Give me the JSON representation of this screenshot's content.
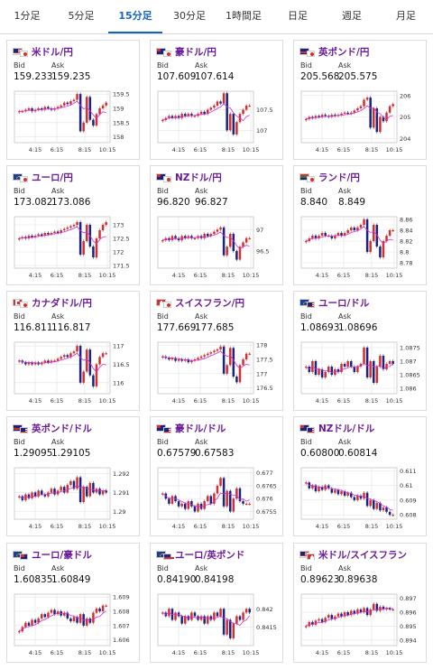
{
  "tabs": [
    {
      "label": "1分足",
      "active": false
    },
    {
      "label": "5分足",
      "active": false
    },
    {
      "label": "15分足",
      "active": true
    },
    {
      "label": "30分足",
      "active": false
    },
    {
      "label": "1時間足",
      "active": false
    },
    {
      "label": "日足",
      "active": false
    },
    {
      "label": "週足",
      "active": false
    },
    {
      "label": "月足",
      "active": false
    }
  ],
  "labels": {
    "bid": "Bid",
    "ask": "Ask"
  },
  "colors": {
    "up": "#d32f2f",
    "down": "#1a237e",
    "ma": "#d12fd1",
    "accent": "#1565c0",
    "name": "#6a1b9a"
  },
  "pairs": [
    {
      "name": "米ドル/円",
      "flags": [
        "us-flag-icon",
        "jp-flag-icon"
      ],
      "bid": "159.233",
      "ask": "159.235",
      "chart_data": {
        "type": "candlestick",
        "x_ticks": [
          "4:15",
          "6:15",
          "8:15",
          "10:15"
        ],
        "y_ticks": [
          "159.5",
          "159",
          "158.5",
          "158"
        ],
        "ylim": [
          157.8,
          159.6
        ],
        "close": [
          158.9,
          158.9,
          158.95,
          159.0,
          158.9,
          158.95,
          159.0,
          158.95,
          159.05,
          159.0,
          158.95,
          159.0,
          159.05,
          159.1,
          159.2,
          159.15,
          159.25,
          159.3,
          159.5,
          158.2,
          158.5,
          159.4,
          158.6,
          158.4,
          158.8,
          159.0,
          159.1,
          159.2
        ]
      }
    },
    {
      "name": "豪ドル/円",
      "flags": [
        "au-flag-icon",
        "jp-flag-icon"
      ],
      "bid": "107.609",
      "ask": "107.614",
      "chart_data": {
        "type": "candlestick",
        "x_ticks": [
          "4:15",
          "6:15",
          "8:15",
          "10:15"
        ],
        "y_ticks": [
          "107.5",
          "107"
        ],
        "ylim": [
          106.7,
          107.95
        ],
        "close": [
          107.25,
          107.3,
          107.35,
          107.3,
          107.35,
          107.3,
          107.4,
          107.35,
          107.4,
          107.35,
          107.35,
          107.4,
          107.45,
          107.4,
          107.5,
          107.55,
          107.6,
          107.7,
          107.65,
          107.9,
          107.0,
          107.4,
          106.9,
          107.2,
          107.4,
          107.5,
          107.6,
          107.6
        ]
      }
    },
    {
      "name": "英ポンド/円",
      "flags": [
        "gb-flag-icon",
        "jp-flag-icon"
      ],
      "bid": "205.568",
      "ask": "205.575",
      "chart_data": {
        "type": "candlestick",
        "x_ticks": [
          "4:15",
          "6:15",
          "8:15",
          "10:15"
        ],
        "y_ticks": [
          "206",
          "205",
          "204"
        ],
        "ylim": [
          203.8,
          206.2
        ],
        "close": [
          204.9,
          205.0,
          204.95,
          205.05,
          205.0,
          205.1,
          205.05,
          205.0,
          205.1,
          205.05,
          205.1,
          205.15,
          205.2,
          205.15,
          205.2,
          205.3,
          205.4,
          205.5,
          205.8,
          205.9,
          204.5,
          205.4,
          204.3,
          205.0,
          204.8,
          205.2,
          205.5,
          205.6
        ]
      }
    },
    {
      "name": "ユーロ/円",
      "flags": [
        "eu-flag-icon",
        "jp-flag-icon"
      ],
      "bid": "173.082",
      "ask": "173.086",
      "chart_data": {
        "type": "candlestick",
        "x_ticks": [
          "4:15",
          "6:15",
          "8:15",
          "10:15"
        ],
        "y_ticks": [
          "173",
          "172.5",
          "172",
          "171.5"
        ],
        "ylim": [
          171.4,
          173.3
        ],
        "close": [
          172.5,
          172.55,
          172.5,
          172.6,
          172.55,
          172.6,
          172.65,
          172.6,
          172.7,
          172.65,
          172.7,
          172.75,
          172.7,
          172.8,
          172.85,
          172.9,
          172.95,
          173.0,
          173.1,
          171.9,
          172.4,
          173.0,
          172.2,
          171.8,
          172.5,
          172.8,
          173.0,
          173.1
        ]
      }
    },
    {
      "name": "NZドル/円",
      "flags": [
        "nz-flag-icon",
        "jp-flag-icon"
      ],
      "bid": "96.820",
      "ask": "96.827",
      "chart_data": {
        "type": "candlestick",
        "x_ticks": [
          "4:15",
          "6:15",
          "8:15",
          "10:15"
        ],
        "y_ticks": [
          "97",
          "96.5"
        ],
        "ylim": [
          96.1,
          97.3
        ],
        "close": [
          96.75,
          96.8,
          96.75,
          96.85,
          96.8,
          96.75,
          96.85,
          96.8,
          96.85,
          96.8,
          96.8,
          96.85,
          96.8,
          96.9,
          96.85,
          96.9,
          96.95,
          97.0,
          97.05,
          96.4,
          96.6,
          96.9,
          96.5,
          96.3,
          96.6,
          96.7,
          96.8,
          96.8
        ]
      }
    },
    {
      "name": "ランド/円",
      "flags": [
        "za-flag-icon",
        "jp-flag-icon"
      ],
      "bid": "8.840",
      "ask": "8.849",
      "chart_data": {
        "type": "candlestick",
        "x_ticks": [
          "4:15",
          "6:15",
          "8:15",
          "10:15"
        ],
        "y_ticks": [
          "8.86",
          "8.84",
          "8.82",
          "8.8",
          "8.78"
        ],
        "ylim": [
          8.77,
          8.865
        ],
        "close": [
          8.82,
          8.825,
          8.83,
          8.825,
          8.83,
          8.835,
          8.83,
          8.83,
          8.825,
          8.83,
          8.835,
          8.83,
          8.835,
          8.84,
          8.845,
          8.84,
          8.845,
          8.85,
          8.86,
          8.8,
          8.82,
          8.85,
          8.81,
          8.79,
          8.82,
          8.83,
          8.84,
          8.84
        ]
      }
    },
    {
      "name": "カナダドル/円",
      "flags": [
        "ca-flag-icon",
        "jp-flag-icon"
      ],
      "bid": "116.811",
      "ask": "116.817",
      "chart_data": {
        "type": "candlestick",
        "x_ticks": [
          "4:15",
          "6:15",
          "8:15",
          "10:15"
        ],
        "y_ticks": [
          "117",
          "116.5",
          "116"
        ],
        "ylim": [
          115.7,
          117.1
        ],
        "close": [
          116.6,
          116.55,
          116.5,
          116.55,
          116.5,
          116.55,
          116.5,
          116.55,
          116.6,
          116.55,
          116.6,
          116.6,
          116.65,
          116.7,
          116.75,
          116.7,
          116.8,
          116.85,
          117.0,
          116.0,
          116.3,
          116.9,
          116.2,
          115.9,
          116.5,
          116.7,
          116.8,
          116.8
        ]
      }
    },
    {
      "name": "スイスフラン/円",
      "flags": [
        "ch-flag-icon",
        "jp-flag-icon"
      ],
      "bid": "177.669",
      "ask": "177.685",
      "chart_data": {
        "type": "candlestick",
        "x_ticks": [
          "4:15",
          "6:15",
          "8:15",
          "10:15"
        ],
        "y_ticks": [
          "178",
          "177.5",
          "177",
          "176.5"
        ],
        "ylim": [
          176.3,
          178.1
        ],
        "close": [
          177.6,
          177.55,
          177.5,
          177.55,
          177.45,
          177.5,
          177.45,
          177.5,
          177.4,
          177.45,
          177.5,
          177.55,
          177.6,
          177.65,
          177.7,
          177.75,
          177.8,
          177.85,
          177.95,
          177.0,
          177.3,
          177.9,
          176.9,
          176.7,
          177.3,
          177.5,
          177.7,
          177.7
        ]
      }
    },
    {
      "name": "ユーロ/ドル",
      "flags": [
        "eu-flag-icon",
        "us-flag-icon"
      ],
      "bid": "1.08693",
      "ask": "1.08696",
      "chart_data": {
        "type": "candlestick",
        "x_ticks": [
          "4:15",
          "6:15",
          "8:15",
          "10:15"
        ],
        "y_ticks": [
          "1.0875",
          "1.087",
          "1.0865",
          "1.086"
        ],
        "ylim": [
          1.0858,
          1.0877
        ],
        "close": [
          1.0868,
          1.0866,
          1.087,
          1.0865,
          1.0867,
          1.0864,
          1.0866,
          1.0868,
          1.0865,
          1.0867,
          1.0866,
          1.0869,
          1.0868,
          1.087,
          1.0868,
          1.0866,
          1.0868,
          1.0869,
          1.0875,
          1.0864,
          1.087,
          1.0862,
          1.0868,
          1.0872,
          1.0867,
          1.0869,
          1.087,
          1.0869
        ]
      }
    },
    {
      "name": "英ポンド/ドル",
      "flags": [
        "gb-flag-icon",
        "us-flag-icon"
      ],
      "bid": "1.29095",
      "ask": "1.29105",
      "chart_data": {
        "type": "candlestick",
        "x_ticks": [
          "4:15",
          "6:15",
          "8:15",
          "10:15"
        ],
        "y_ticks": [
          "1.292",
          "1.291",
          "1.29"
        ],
        "ylim": [
          1.2896,
          1.2923
        ],
        "close": [
          1.2908,
          1.2906,
          1.2909,
          1.2907,
          1.291,
          1.2908,
          1.2911,
          1.2909,
          1.2908,
          1.291,
          1.2912,
          1.2909,
          1.2911,
          1.2913,
          1.291,
          1.2914,
          1.2916,
          1.2912,
          1.2918,
          1.2905,
          1.2913,
          1.2908,
          1.2915,
          1.291,
          1.2912,
          1.2909,
          1.2911,
          1.291
        ]
      }
    },
    {
      "name": "豪ドル/ドル",
      "flags": [
        "au-flag-icon",
        "us-flag-icon"
      ],
      "bid": "0.67579",
      "ask": "0.67583",
      "chart_data": {
        "type": "candlestick",
        "x_ticks": [
          "4:15",
          "6:15",
          "8:15",
          "10:15"
        ],
        "y_ticks": [
          "0.677",
          "0.6765",
          "0.676",
          "0.6755"
        ],
        "ylim": [
          0.6752,
          0.6772
        ],
        "close": [
          0.6762,
          0.676,
          0.6758,
          0.6761,
          0.6759,
          0.6757,
          0.6758,
          0.6756,
          0.6759,
          0.6757,
          0.6755,
          0.6758,
          0.6756,
          0.6759,
          0.6761,
          0.6758,
          0.6762,
          0.6765,
          0.6768,
          0.6757,
          0.6763,
          0.6755,
          0.676,
          0.6764,
          0.6759,
          0.6758,
          0.6758,
          0.6758
        ]
      }
    },
    {
      "name": "NZドル/ドル",
      "flags": [
        "nz-flag-icon",
        "us-flag-icon"
      ],
      "bid": "0.60800",
      "ask": "0.60814",
      "chart_data": {
        "type": "candlestick",
        "x_ticks": [
          "4:15",
          "6:15",
          "8:15",
          "10:15"
        ],
        "y_ticks": [
          "0.611",
          "0.61",
          "0.609",
          "0.608"
        ],
        "ylim": [
          0.6077,
          0.6112
        ],
        "close": [
          0.6102,
          0.6098,
          0.61,
          0.6096,
          0.6099,
          0.6097,
          0.61,
          0.6098,
          0.6095,
          0.6097,
          0.6094,
          0.6096,
          0.6093,
          0.6095,
          0.6092,
          0.609,
          0.6093,
          0.6091,
          0.6095,
          0.6086,
          0.609,
          0.6084,
          0.6088,
          0.6083,
          0.6085,
          0.6082,
          0.608,
          0.608
        ]
      }
    },
    {
      "name": "ユーロ/豪ドル",
      "flags": [
        "eu-flag-icon",
        "au-flag-icon"
      ],
      "bid": "1.60835",
      "ask": "1.60849",
      "chart_data": {
        "type": "candlestick",
        "x_ticks": [
          "4:15",
          "6:15",
          "8:15",
          "10:15"
        ],
        "y_ticks": [
          "1.609",
          "1.608",
          "1.607",
          "1.606"
        ],
        "ylim": [
          1.6056,
          1.6092
        ],
        "close": [
          1.6066,
          1.6069,
          1.6072,
          1.607,
          1.6074,
          1.6072,
          1.6075,
          1.6078,
          1.6076,
          1.6079,
          1.6081,
          1.6078,
          1.608,
          1.6077,
          1.6079,
          1.6075,
          1.6073,
          1.6076,
          1.6072,
          1.6078,
          1.607,
          1.6075,
          1.6072,
          1.6079,
          1.6082,
          1.608,
          1.6084,
          1.6084
        ]
      }
    },
    {
      "name": "ユーロ/英ポンド",
      "flags": [
        "eu-flag-icon",
        "gb-flag-icon"
      ],
      "bid": "0.84190",
      "ask": "0.84198",
      "chart_data": {
        "type": "candlestick",
        "x_ticks": [
          "4:15",
          "6:15",
          "8:15",
          "10:15"
        ],
        "y_ticks": [
          "0.842",
          "0.8415"
        ],
        "ylim": [
          0.841,
          0.8424
        ],
        "close": [
          0.8419,
          0.8418,
          0.842,
          0.8417,
          0.8419,
          0.8418,
          0.8416,
          0.8418,
          0.8417,
          0.8419,
          0.8418,
          0.8417,
          0.8418,
          0.8416,
          0.8418,
          0.8417,
          0.8419,
          0.8418,
          0.842,
          0.8413,
          0.8417,
          0.8412,
          0.8416,
          0.8418,
          0.8417,
          0.8419,
          0.842,
          0.8419
        ]
      }
    },
    {
      "name": "米ドル/スイスフラン",
      "flags": [
        "us-flag-icon",
        "ch-flag-icon"
      ],
      "bid": "0.89623",
      "ask": "0.89638",
      "chart_data": {
        "type": "candlestick",
        "x_ticks": [
          "4:15",
          "6:15",
          "8:15",
          "10:15"
        ],
        "y_ticks": [
          "0.897",
          "0.896",
          "0.895",
          "0.894"
        ],
        "ylim": [
          0.8936,
          0.8973
        ],
        "close": [
          0.895,
          0.8953,
          0.8951,
          0.8954,
          0.8955,
          0.8953,
          0.8956,
          0.8958,
          0.8955,
          0.8957,
          0.8959,
          0.8957,
          0.896,
          0.8958,
          0.8961,
          0.8959,
          0.8962,
          0.896,
          0.8963,
          0.8958,
          0.8962,
          0.8966,
          0.8961,
          0.8964,
          0.8962,
          0.8963,
          0.8962,
          0.8962
        ]
      }
    }
  ]
}
